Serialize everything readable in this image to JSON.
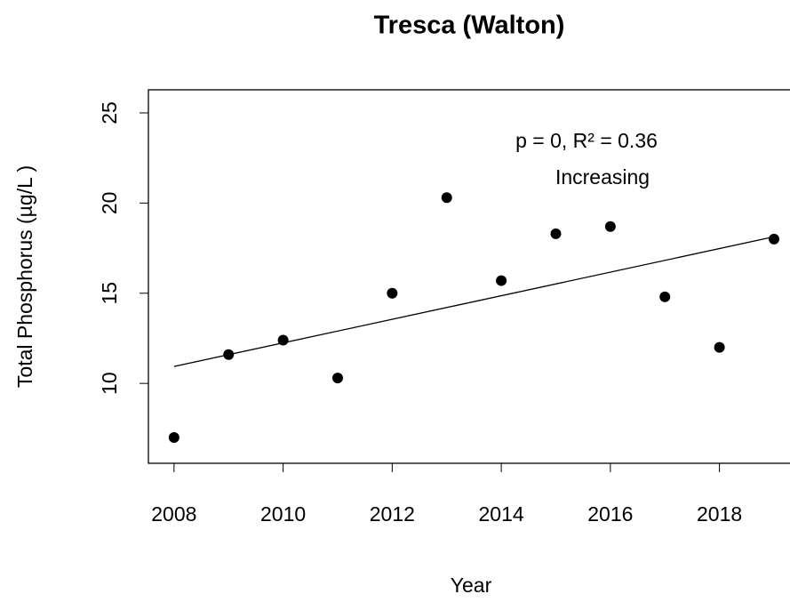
{
  "chart_data": {
    "type": "scatter",
    "title": "Tresca (Walton)",
    "x_label": "Year",
    "y_label": "Total Phosphorus (µg/L )",
    "x": [
      2008,
      2009,
      2010,
      2011,
      2012,
      2013,
      2014,
      2015,
      2016,
      2017,
      2018,
      2019
    ],
    "values": [
      7.0,
      11.6,
      12.4,
      10.3,
      15.0,
      20.3,
      15.7,
      18.3,
      18.7,
      14.8,
      12.0,
      18.0
    ],
    "color": "#000000",
    "trend": {
      "x": [
        2008,
        2019
      ],
      "values": [
        10.94,
        18.13
      ]
    },
    "annotations": [
      "p = 0, R² = 0.36",
      "Increasing"
    ],
    "xlim": [
      2007.53,
      2019.44
    ],
    "ylim": [
      5.57,
      26.28
    ],
    "xticks": [
      2008,
      2010,
      2012,
      2014,
      2016,
      2018
    ],
    "yticks": [
      10,
      15,
      20,
      25
    ],
    "grid": false
  }
}
